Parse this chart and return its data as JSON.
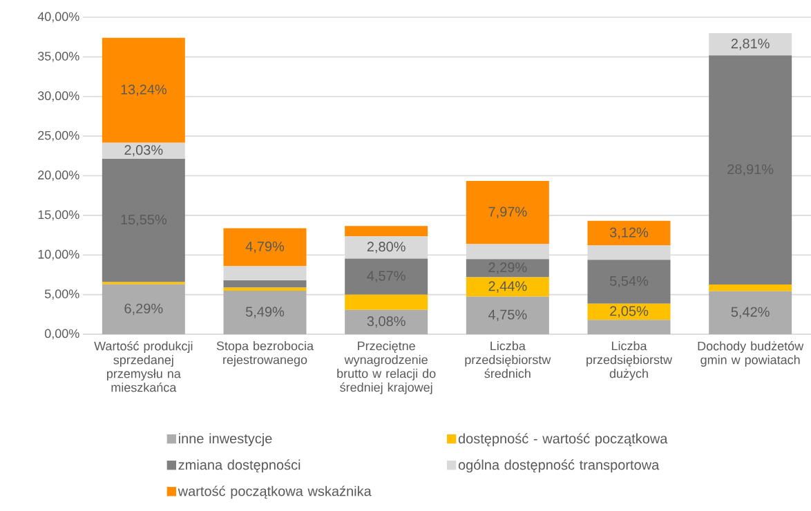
{
  "chart_data": {
    "type": "bar",
    "stacked": true,
    "categories": [
      "Wartość produkcji sprzedanej przemysłu na mieszkańca",
      "Stopa bezrobocia rejestrowanego",
      "Przeciętne wynagrodzenie brutto w relacji do średniej krajowej",
      "Liczba przedsiębiorstw średnich",
      "Liczba przedsiębiorstw dużych",
      "Dochody budżetów gmin w powiatach"
    ],
    "series": [
      {
        "name": "inne inwestycje",
        "color": "#adadad",
        "values": [
          6.29,
          5.49,
          3.08,
          4.75,
          1.8,
          5.42
        ],
        "value_labels": [
          "6,29%",
          "5,49%",
          "3,08%",
          "4,75%",
          null,
          "5,42%"
        ]
      },
      {
        "name": "dostępność - wartość początkowa",
        "color": "#ffc000",
        "values": [
          0.3,
          0.4,
          1.9,
          2.44,
          2.05,
          0.85
        ],
        "value_labels": [
          null,
          null,
          null,
          "2,44%",
          "2,05%",
          null
        ]
      },
      {
        "name": "zmiana dostępności",
        "color": "#7f7f7f",
        "values": [
          15.55,
          0.9,
          4.57,
          2.29,
          5.54,
          28.91
        ],
        "value_labels": [
          "15,55%",
          null,
          "4,57%",
          "2,29%",
          "5,54%",
          "28,91%"
        ]
      },
      {
        "name": "ogólna dostępność transportowa",
        "color": "#d9d9d9",
        "values": [
          2.03,
          1.8,
          2.8,
          1.9,
          1.8,
          2.81
        ],
        "value_labels": [
          "2,03%",
          null,
          "2,80%",
          null,
          null,
          "2,81%"
        ]
      },
      {
        "name": "wartość początkowa wskaźnika",
        "color": "#ff8c00",
        "values": [
          13.24,
          4.79,
          1.3,
          7.97,
          3.12,
          0
        ],
        "value_labels": [
          "13,24%",
          "4,79%",
          null,
          "7,97%",
          "3,12%",
          null
        ]
      }
    ],
    "ylim": [
      0,
      40
    ],
    "yticks": [
      {
        "value": 0,
        "label": "0,00%"
      },
      {
        "value": 5,
        "label": "5,00%"
      },
      {
        "value": 10,
        "label": "10,00%"
      },
      {
        "value": 15,
        "label": "15,00%"
      },
      {
        "value": 20,
        "label": "20,00%"
      },
      {
        "value": 25,
        "label": "25,00%"
      },
      {
        "value": 30,
        "label": "30,00%"
      },
      {
        "value": 35,
        "label": "35,00%"
      },
      {
        "value": 40,
        "label": "40,00%"
      }
    ],
    "grid": "y",
    "legend": "bottom"
  }
}
